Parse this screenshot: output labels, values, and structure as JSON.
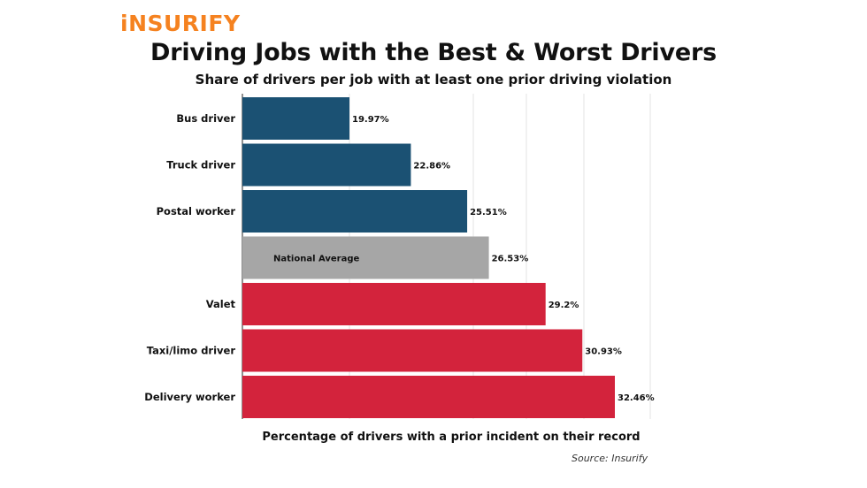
{
  "brand": {
    "logo_text": "iNSURIFY",
    "accent_color": "#f58220"
  },
  "chart_data": {
    "type": "bar",
    "orientation": "horizontal",
    "title": "Driving Jobs with the Best & Worst Drivers",
    "subtitle": "Share of drivers per job with at least one prior driving violation",
    "xlabel": "Percentage of drivers with a prior incident on their record",
    "source": "Source: Insurify",
    "grid": true,
    "bars": [
      {
        "category": "Bus driver",
        "value": 19.97,
        "label": "19.97%",
        "group": "best"
      },
      {
        "category": "Truck driver",
        "value": 22.86,
        "label": "22.86%",
        "group": "best"
      },
      {
        "category": "Postal worker",
        "value": 25.51,
        "label": "25.51%",
        "group": "best"
      },
      {
        "category": "National Average",
        "value": 26.53,
        "label": "26.53%",
        "group": "average"
      },
      {
        "category": "Valet",
        "value": 29.2,
        "label": "29.2%",
        "group": "worst"
      },
      {
        "category": "Taxi/limo driver",
        "value": 30.93,
        "label": "30.93%",
        "group": "worst"
      },
      {
        "category": "Delivery worker",
        "value": 32.46,
        "label": "32.46%",
        "group": "worst"
      }
    ],
    "colors": {
      "best": "#1b5173",
      "average": "#a6a6a6",
      "worst": "#d3233c"
    }
  }
}
